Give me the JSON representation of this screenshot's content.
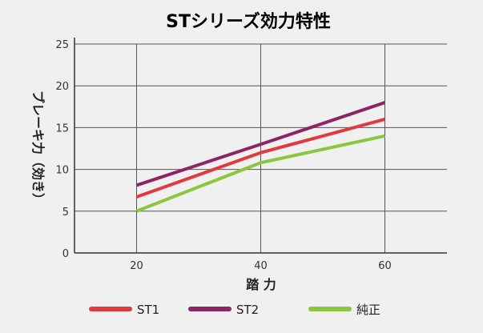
{
  "chart_data": {
    "type": "line",
    "title": "STシリーズ効力特性",
    "xlabel": "踏 力",
    "ylabel": "ブレーキ力（効き）",
    "x_ticks": [
      "20",
      "40",
      "60"
    ],
    "y_ticks": [
      "0",
      "5",
      "10",
      "15",
      "20",
      "25"
    ],
    "xlim": [
      10,
      70
    ],
    "ylim": [
      0,
      25
    ],
    "grid": true,
    "legend_position": "bottom",
    "series": [
      {
        "name": "ST1",
        "color": "#e03a3e",
        "x": [
          20,
          40,
          60
        ],
        "y": [
          6.7,
          12,
          16
        ]
      },
      {
        "name": "ST2",
        "color": "#8b2565",
        "x": [
          20,
          40,
          60
        ],
        "y": [
          8.1,
          13,
          18
        ]
      },
      {
        "name": "純正",
        "color": "#8cc63f",
        "x": [
          20,
          40,
          60
        ],
        "y": [
          5,
          10.8,
          14
        ]
      }
    ]
  }
}
